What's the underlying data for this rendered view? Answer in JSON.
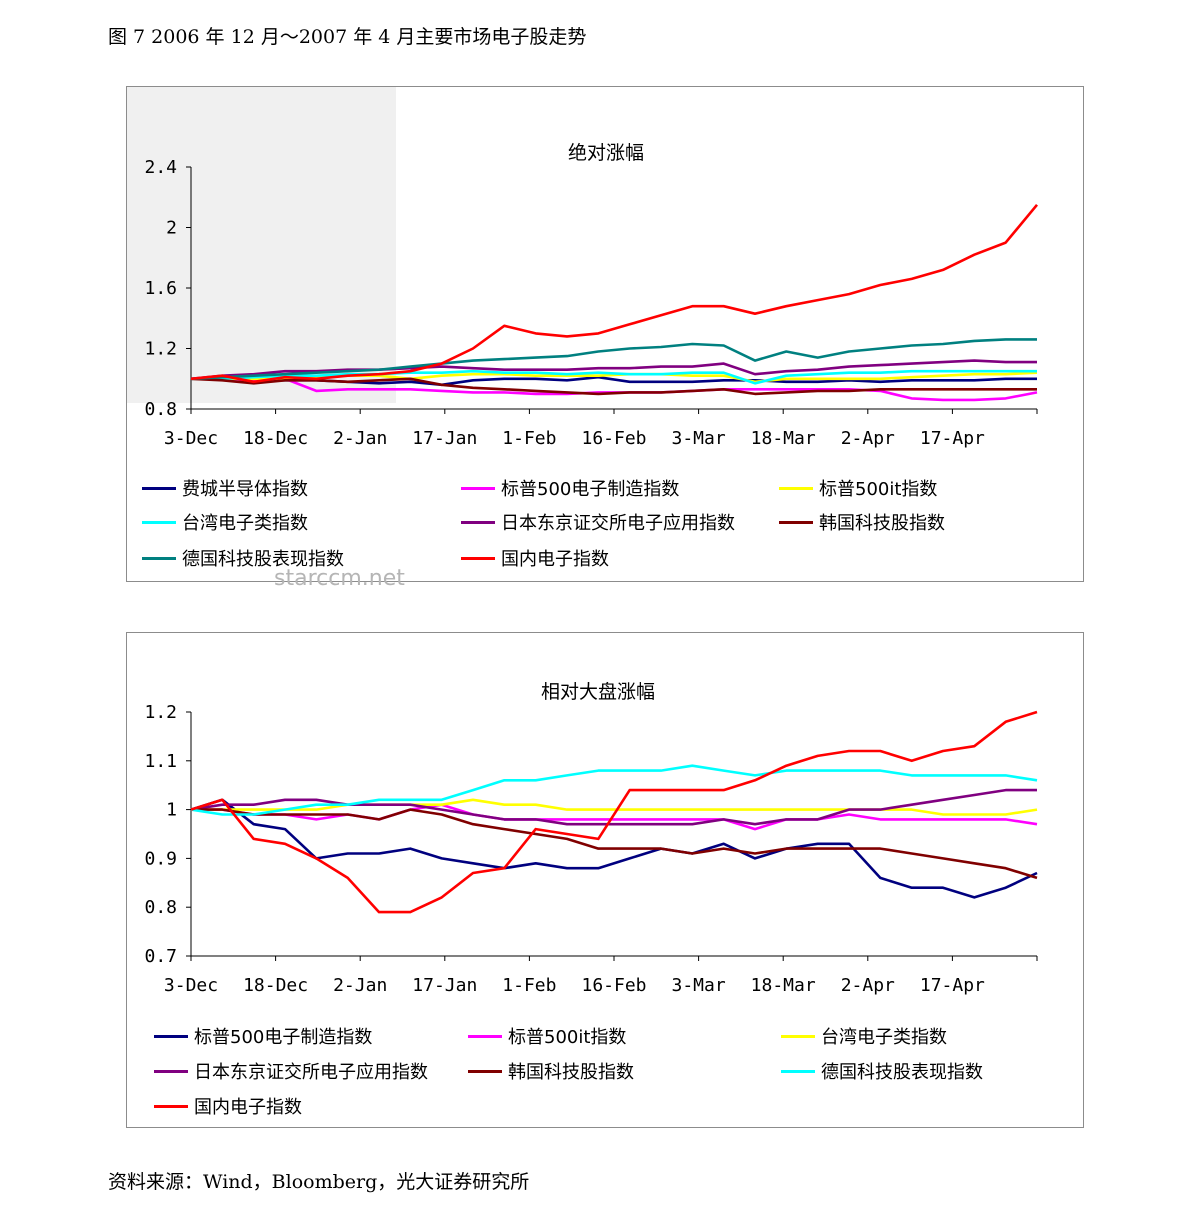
{
  "caption": "图 7 2006 年 12 月～2007 年 4 月主要市场电子股走势",
  "source": "资料来源：Wind，Bloomberg，光大证券研究所",
  "watermark": "starccm.net",
  "chart_data": [
    {
      "type": "line",
      "title": "绝对涨幅",
      "x_ticks": [
        "3-Dec",
        "18-Dec",
        "2-Jan",
        "17-Jan",
        "1-Feb",
        "16-Feb",
        "3-Mar",
        "18-Mar",
        "2-Apr",
        "17-Apr"
      ],
      "y_ticks": [
        "0.8",
        "1.2",
        "1.6",
        "2",
        "2.4"
      ],
      "ylim": [
        0.8,
        2.4
      ],
      "grid": false,
      "legend_position": "bottom",
      "series": [
        {
          "name": "费城半导体指数",
          "color": "#00007f",
          "values": [
            1.0,
            1.01,
            0.99,
            0.99,
            0.99,
            0.98,
            0.97,
            0.98,
            0.96,
            0.99,
            1.0,
            1.0,
            0.99,
            1.01,
            0.98,
            0.98,
            0.98,
            0.99,
            0.99,
            0.98,
            0.98,
            0.99,
            0.98,
            0.99,
            0.99,
            0.99,
            1.0,
            1.0
          ]
        },
        {
          "name": "标普500电子制造指数",
          "color": "#ff00ff",
          "values": [
            1.0,
            1.0,
            0.99,
            1.0,
            0.92,
            0.93,
            0.93,
            0.93,
            0.92,
            0.91,
            0.91,
            0.9,
            0.9,
            0.91,
            0.91,
            0.91,
            0.92,
            0.93,
            0.93,
            0.93,
            0.93,
            0.93,
            0.92,
            0.87,
            0.86,
            0.86,
            0.87,
            0.91
          ]
        },
        {
          "name": "标普500it指数",
          "color": "#ffff00",
          "values": [
            1.0,
            1.0,
            1.0,
            1.0,
            1.01,
            1.02,
            1.02,
            1.0,
            1.02,
            1.03,
            1.03,
            1.02,
            1.02,
            1.02,
            1.03,
            1.03,
            1.02,
            1.02,
            0.98,
            1.0,
            1.0,
            1.0,
            1.0,
            1.01,
            1.02,
            1.03,
            1.03,
            1.04
          ]
        },
        {
          "name": "台湾电子类指数",
          "color": "#00ffff",
          "values": [
            1.0,
            1.0,
            1.01,
            1.02,
            1.02,
            1.03,
            1.03,
            1.04,
            1.04,
            1.05,
            1.04,
            1.04,
            1.03,
            1.04,
            1.03,
            1.03,
            1.04,
            1.04,
            0.97,
            1.02,
            1.03,
            1.04,
            1.04,
            1.05,
            1.05,
            1.05,
            1.05,
            1.05
          ]
        },
        {
          "name": "日本东京证交所电子应用指数",
          "color": "#800080",
          "values": [
            1.0,
            1.02,
            1.03,
            1.05,
            1.05,
            1.06,
            1.06,
            1.07,
            1.08,
            1.07,
            1.06,
            1.06,
            1.06,
            1.07,
            1.07,
            1.08,
            1.08,
            1.1,
            1.03,
            1.05,
            1.06,
            1.08,
            1.09,
            1.1,
            1.11,
            1.12,
            1.11,
            1.11
          ]
        },
        {
          "name": "韩国科技股指数",
          "color": "#800000",
          "values": [
            1.0,
            0.99,
            0.97,
            0.99,
            0.99,
            0.98,
            0.99,
            1.0,
            0.96,
            0.94,
            0.93,
            0.92,
            0.91,
            0.9,
            0.91,
            0.91,
            0.92,
            0.93,
            0.9,
            0.91,
            0.92,
            0.92,
            0.93,
            0.93,
            0.93,
            0.93,
            0.93,
            0.93
          ]
        },
        {
          "name": "德国科技股表现指数",
          "color": "#008080",
          "values": [
            1.0,
            1.01,
            1.02,
            1.03,
            1.04,
            1.05,
            1.06,
            1.08,
            1.1,
            1.12,
            1.13,
            1.14,
            1.15,
            1.18,
            1.2,
            1.21,
            1.23,
            1.22,
            1.12,
            1.18,
            1.14,
            1.18,
            1.2,
            1.22,
            1.23,
            1.25,
            1.26,
            1.26
          ]
        },
        {
          "name": "国内电子指数",
          "color": "#ff0000",
          "values": [
            1.0,
            1.02,
            0.98,
            1.01,
            1.0,
            1.02,
            1.03,
            1.05,
            1.1,
            1.2,
            1.35,
            1.3,
            1.28,
            1.3,
            1.36,
            1.42,
            1.48,
            1.48,
            1.43,
            1.48,
            1.52,
            1.56,
            1.62,
            1.66,
            1.72,
            1.82,
            1.9,
            2.15
          ]
        }
      ]
    },
    {
      "type": "line",
      "title": "相对大盘涨幅",
      "x_ticks": [
        "3-Dec",
        "18-Dec",
        "2-Jan",
        "17-Jan",
        "1-Feb",
        "16-Feb",
        "3-Mar",
        "18-Mar",
        "2-Apr",
        "17-Apr"
      ],
      "y_ticks": [
        "0.7",
        "0.8",
        "0.9",
        "1",
        "1.1",
        "1.2"
      ],
      "ylim": [
        0.7,
        1.2
      ],
      "grid": false,
      "legend_position": "bottom",
      "series": [
        {
          "name": "标普500电子制造指数",
          "color": "#00007f",
          "values": [
            1.0,
            1.02,
            0.97,
            0.96,
            0.9,
            0.91,
            0.91,
            0.92,
            0.9,
            0.89,
            0.88,
            0.89,
            0.88,
            0.88,
            0.9,
            0.92,
            0.91,
            0.93,
            0.9,
            0.92,
            0.93,
            0.93,
            0.86,
            0.84,
            0.84,
            0.82,
            0.84,
            0.87
          ]
        },
        {
          "name": "标普500it指数",
          "color": "#ff00ff",
          "values": [
            1.0,
            1.0,
            0.99,
            0.99,
            0.98,
            0.99,
            0.98,
            1.0,
            1.01,
            0.99,
            0.98,
            0.98,
            0.98,
            0.98,
            0.98,
            0.98,
            0.98,
            0.98,
            0.96,
            0.98,
            0.98,
            0.99,
            0.98,
            0.98,
            0.98,
            0.98,
            0.98,
            0.97
          ]
        },
        {
          "name": "台湾电子类指数",
          "color": "#ffff00",
          "values": [
            1.0,
            1.0,
            1.0,
            1.0,
            1.0,
            1.01,
            1.01,
            1.01,
            1.01,
            1.02,
            1.01,
            1.01,
            1.0,
            1.0,
            1.0,
            1.0,
            1.0,
            1.0,
            1.0,
            1.0,
            1.0,
            1.0,
            1.0,
            1.0,
            0.99,
            0.99,
            0.99,
            1.0
          ]
        },
        {
          "name": "日本东京证交所电子应用指数",
          "color": "#800080",
          "values": [
            1.0,
            1.01,
            1.01,
            1.02,
            1.02,
            1.01,
            1.01,
            1.01,
            1.0,
            0.99,
            0.98,
            0.98,
            0.97,
            0.97,
            0.97,
            0.97,
            0.97,
            0.98,
            0.97,
            0.98,
            0.98,
            1.0,
            1.0,
            1.01,
            1.02,
            1.03,
            1.04,
            1.04
          ]
        },
        {
          "name": "韩国科技股指数",
          "color": "#800000",
          "values": [
            1.0,
            1.0,
            0.99,
            0.99,
            0.99,
            0.99,
            0.98,
            1.0,
            0.99,
            0.97,
            0.96,
            0.95,
            0.94,
            0.92,
            0.92,
            0.92,
            0.91,
            0.92,
            0.91,
            0.92,
            0.92,
            0.92,
            0.92,
            0.91,
            0.9,
            0.89,
            0.88,
            0.86
          ]
        },
        {
          "name": "德国科技股表现指数",
          "color": "#00ffff",
          "values": [
            1.0,
            0.99,
            0.99,
            1.0,
            1.01,
            1.01,
            1.02,
            1.02,
            1.02,
            1.04,
            1.06,
            1.06,
            1.07,
            1.08,
            1.08,
            1.08,
            1.09,
            1.08,
            1.07,
            1.08,
            1.08,
            1.08,
            1.08,
            1.07,
            1.07,
            1.07,
            1.07,
            1.06
          ]
        },
        {
          "name": "国内电子指数",
          "color": "#ff0000",
          "values": [
            1.0,
            1.02,
            0.94,
            0.93,
            0.9,
            0.86,
            0.79,
            0.79,
            0.82,
            0.87,
            0.88,
            0.96,
            0.95,
            0.94,
            1.04,
            1.04,
            1.04,
            1.04,
            1.06,
            1.09,
            1.11,
            1.12,
            1.12,
            1.1,
            1.12,
            1.13,
            1.18,
            1.2
          ]
        }
      ]
    }
  ]
}
